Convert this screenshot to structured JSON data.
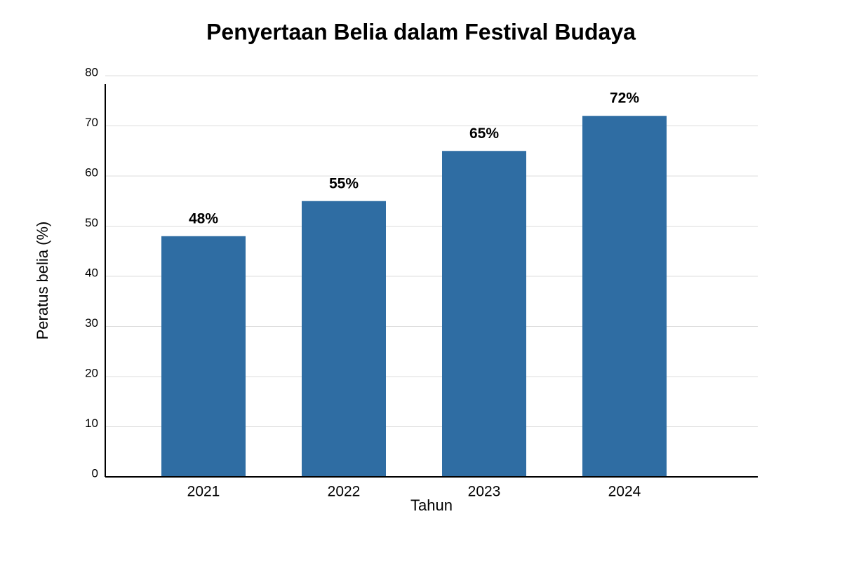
{
  "chart_data": {
    "type": "bar",
    "title": "Penyertaan Belia dalam Festival Budaya",
    "x_label": "Tahun",
    "y_label": "Peratus belia (%)",
    "categories": [
      "2021",
      "2022",
      "2023",
      "2024"
    ],
    "values": [
      48,
      55,
      65,
      72
    ],
    "value_labels": [
      "48%",
      "55%",
      "65%",
      "72%"
    ],
    "color": "#2f6da3",
    "ylim": [
      0,
      80
    ],
    "yticks": [
      0,
      10,
      20,
      30,
      40,
      50,
      60,
      70,
      80
    ],
    "grid": true
  }
}
